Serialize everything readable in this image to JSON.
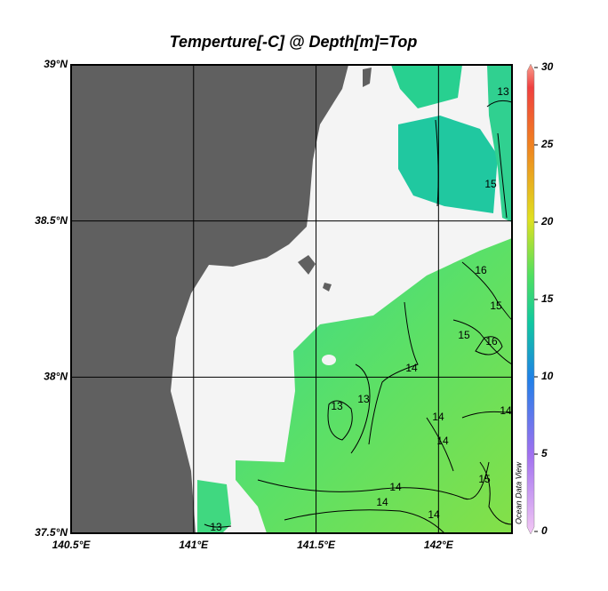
{
  "map": {
    "title": "Temperture[-C] @ Depth[m]=Top",
    "xlim": [
      140.5,
      142.3
    ],
    "ylim": [
      37.5,
      39
    ],
    "xticks": [
      {
        "value": 140.5,
        "label": "140.5°E"
      },
      {
        "value": 141,
        "label": "141°E"
      },
      {
        "value": 141.5,
        "label": "141.5°E"
      },
      {
        "value": 142,
        "label": "142°E"
      }
    ],
    "yticks": [
      {
        "value": 37.5,
        "label": "37.5°N"
      },
      {
        "value": 38,
        "label": "38°N"
      },
      {
        "value": 38.5,
        "label": "38.5°N"
      },
      {
        "value": 39,
        "label": "39°N"
      }
    ],
    "grid": true,
    "colorbar": {
      "lim": [
        0,
        30
      ],
      "ticks": [
        0,
        5,
        10,
        15,
        20,
        25,
        30
      ]
    },
    "contour_labels": [
      13,
      15,
      16,
      15,
      15,
      16,
      14,
      13,
      13,
      14,
      14,
      14,
      15,
      14,
      14,
      14,
      13
    ],
    "watermark": "Ocean Data View"
  }
}
